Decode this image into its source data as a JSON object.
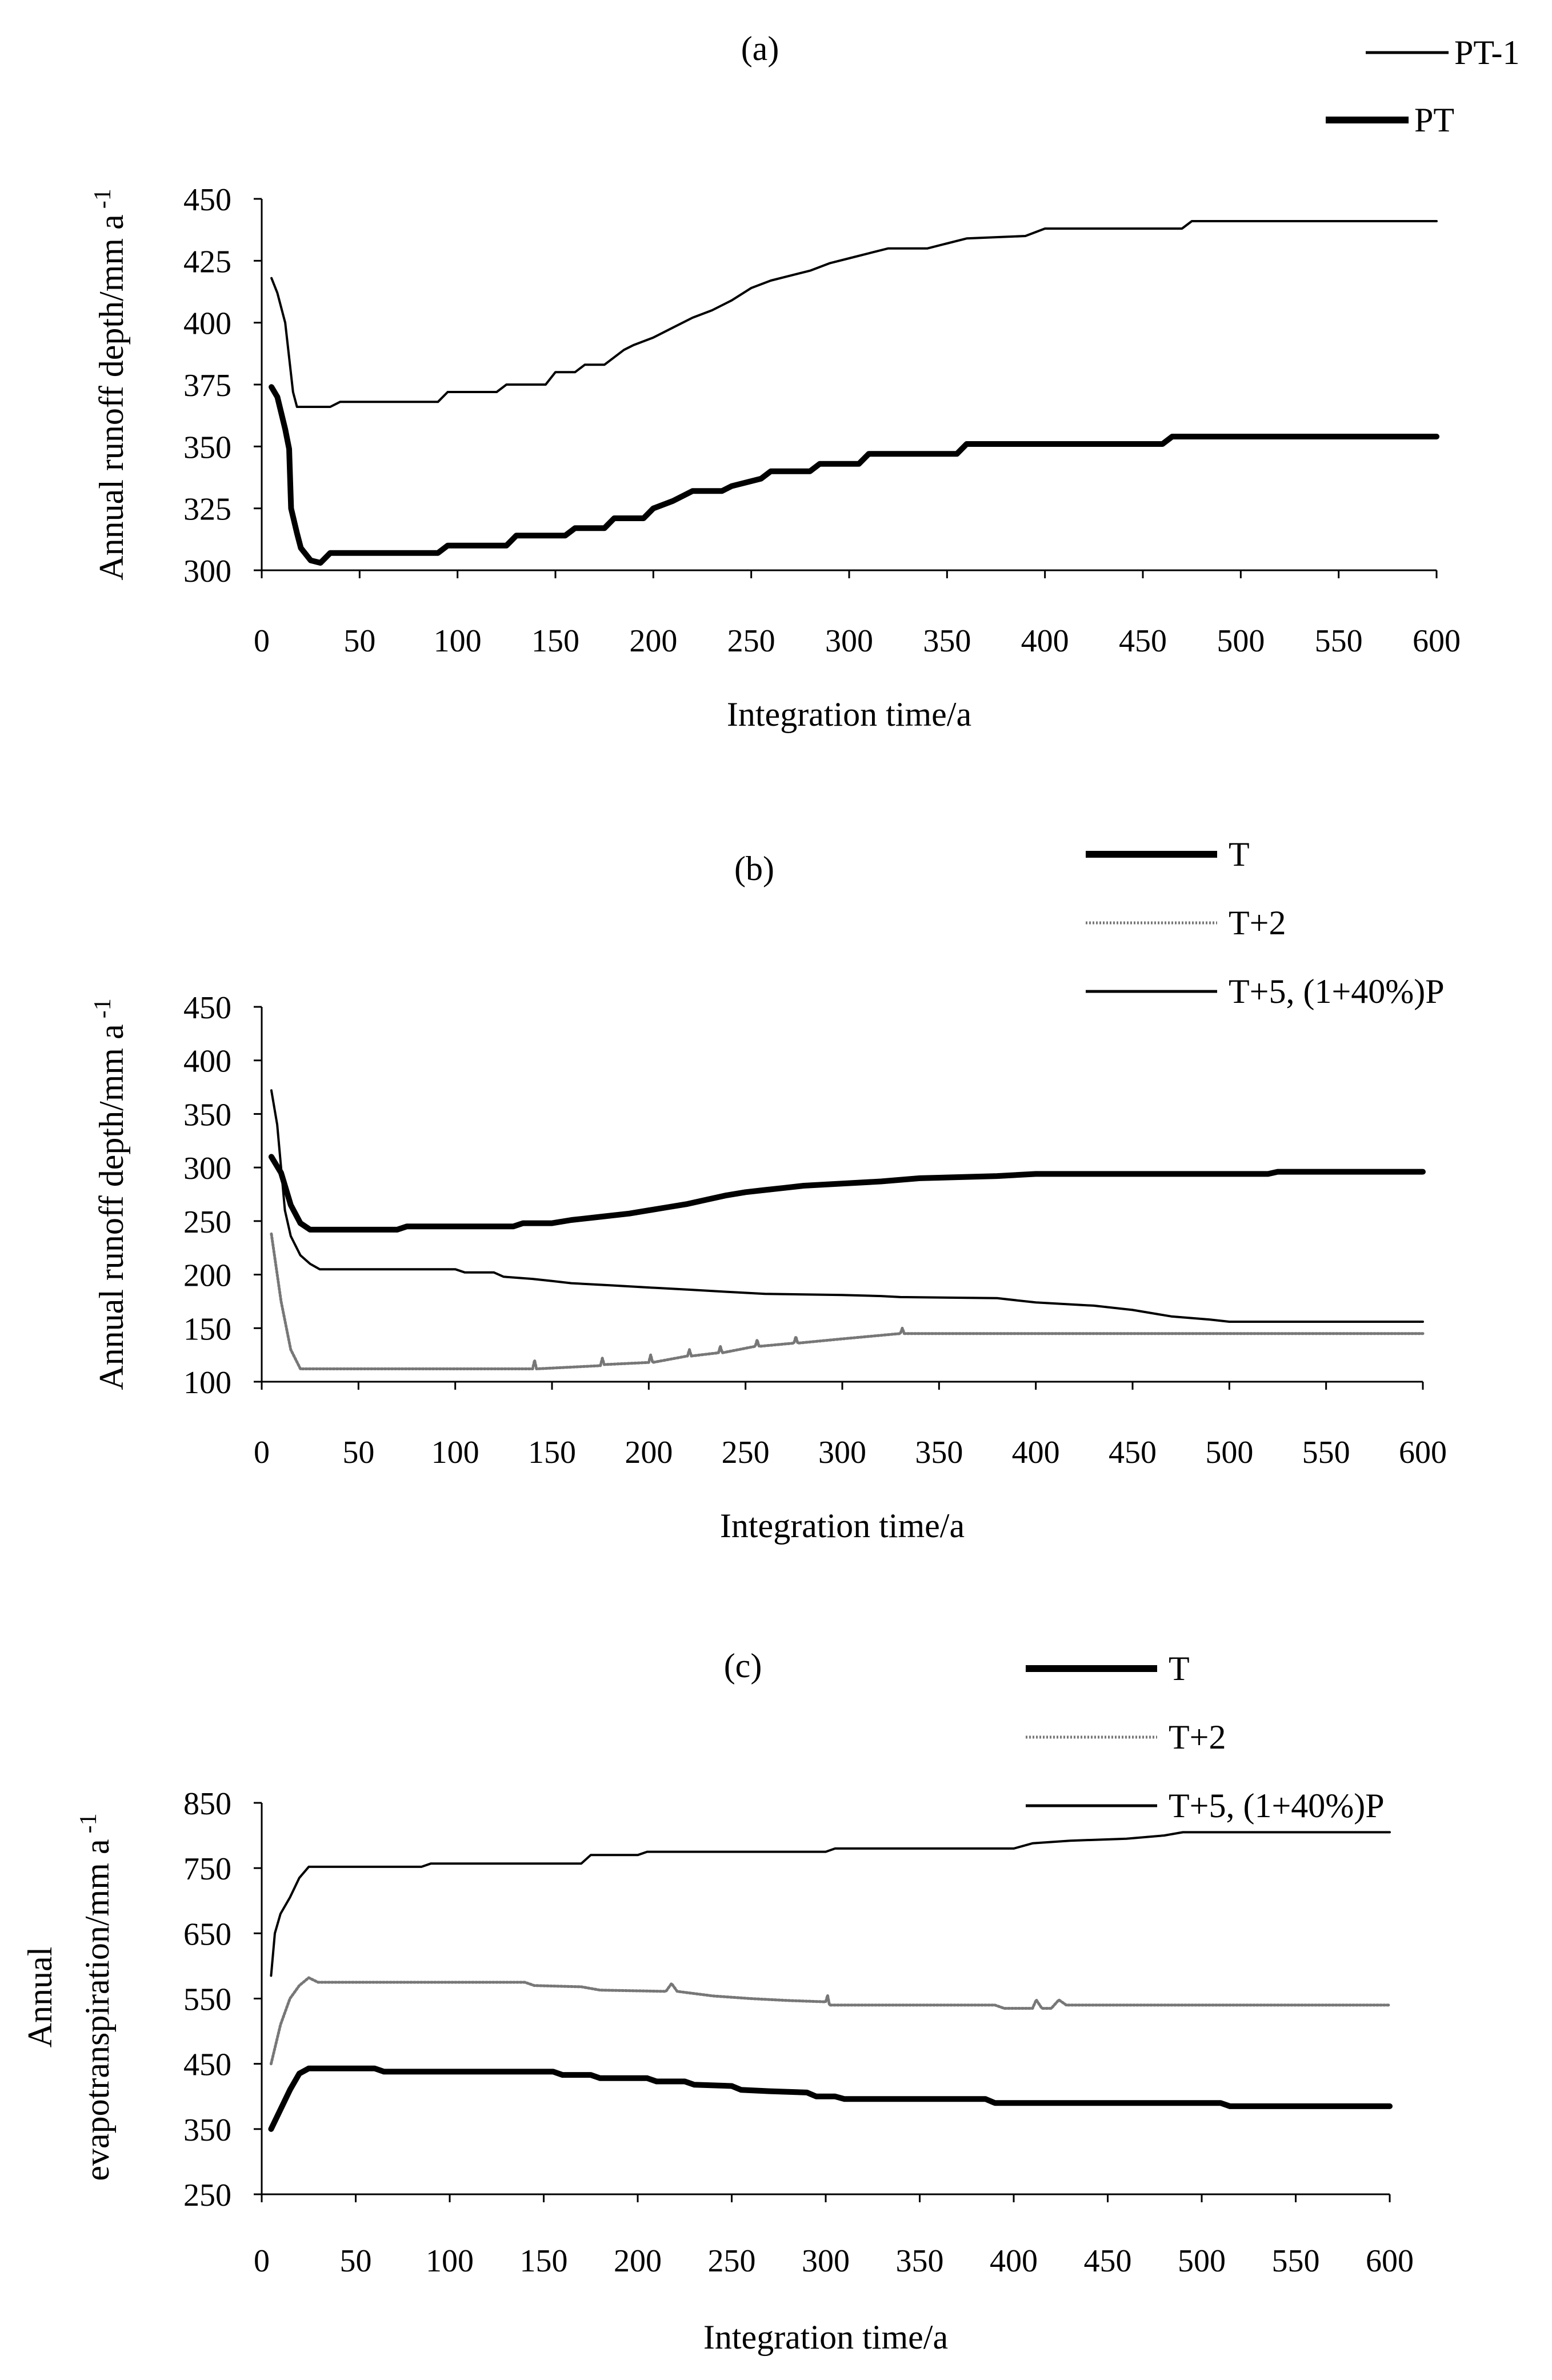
{
  "chart_data": [
    {
      "type": "line",
      "title": "(a)",
      "xlabel": "Integration time/a",
      "ylabel": "Annual runoff depth/mm a",
      "ylabel_sup": "-1",
      "xlim": [
        0,
        600
      ],
      "ylim": [
        300,
        450
      ],
      "xticks": [
        0,
        50,
        100,
        150,
        200,
        250,
        300,
        350,
        400,
        450,
        500,
        550,
        600
      ],
      "yticks": [
        300,
        325,
        350,
        375,
        400,
        425,
        450
      ],
      "legend_position": "top-right",
      "series": [
        {
          "name": "PT-1",
          "style": "thin",
          "points": [
            [
              5,
              418
            ],
            [
              8,
              412
            ],
            [
              12,
              400
            ],
            [
              16,
              372
            ],
            [
              18,
              366
            ],
            [
              35,
              366
            ],
            [
              40,
              368
            ],
            [
              90,
              368
            ],
            [
              95,
              372
            ],
            [
              120,
              372
            ],
            [
              125,
              375
            ],
            [
              145,
              375
            ],
            [
              150,
              380
            ],
            [
              160,
              380
            ],
            [
              165,
              383
            ],
            [
              175,
              383
            ],
            [
              180,
              386
            ],
            [
              185,
              389
            ],
            [
              190,
              391
            ],
            [
              200,
              394
            ],
            [
              210,
              398
            ],
            [
              220,
              402
            ],
            [
              230,
              405
            ],
            [
              240,
              409
            ],
            [
              250,
              414
            ],
            [
              260,
              417
            ],
            [
              270,
              419
            ],
            [
              280,
              421
            ],
            [
              290,
              424
            ],
            [
              300,
              426
            ],
            [
              310,
              428
            ],
            [
              320,
              430
            ],
            [
              340,
              430
            ],
            [
              350,
              432
            ],
            [
              360,
              434
            ],
            [
              390,
              435
            ],
            [
              400,
              438
            ],
            [
              470,
              438
            ],
            [
              475,
              441
            ],
            [
              600,
              441
            ]
          ]
        },
        {
          "name": "PT",
          "style": "thick",
          "points": [
            [
              5,
              374
            ],
            [
              8,
              370
            ],
            [
              12,
              357
            ],
            [
              14,
              349
            ],
            [
              15,
              325
            ],
            [
              18,
              315
            ],
            [
              20,
              309
            ],
            [
              25,
              304
            ],
            [
              30,
              303
            ],
            [
              35,
              307
            ],
            [
              90,
              307
            ],
            [
              95,
              310
            ],
            [
              125,
              310
            ],
            [
              130,
              314
            ],
            [
              155,
              314
            ],
            [
              160,
              317
            ],
            [
              175,
              317
            ],
            [
              180,
              321
            ],
            [
              195,
              321
            ],
            [
              200,
              325
            ],
            [
              210,
              328
            ],
            [
              220,
              332
            ],
            [
              235,
              332
            ],
            [
              240,
              334
            ],
            [
              255,
              337
            ],
            [
              260,
              340
            ],
            [
              280,
              340
            ],
            [
              285,
              343
            ],
            [
              305,
              343
            ],
            [
              310,
              347
            ],
            [
              355,
              347
            ],
            [
              360,
              351
            ],
            [
              460,
              351
            ],
            [
              465,
              354
            ],
            [
              600,
              354
            ]
          ]
        }
      ]
    },
    {
      "type": "line",
      "title": "(b)",
      "xlabel": "Integration time/a",
      "ylabel": "Annual runoff depth/mm a",
      "ylabel_sup": "-1",
      "xlim": [
        0,
        600
      ],
      "ylim": [
        100,
        450
      ],
      "xticks": [
        0,
        50,
        100,
        150,
        200,
        250,
        300,
        350,
        400,
        450,
        500,
        550,
        600
      ],
      "yticks": [
        100,
        150,
        200,
        250,
        300,
        350,
        400,
        450
      ],
      "legend_position": "top-right",
      "series": [
        {
          "name": "T",
          "style": "thick",
          "points": [
            [
              5,
              310
            ],
            [
              10,
              295
            ],
            [
              15,
              265
            ],
            [
              20,
              248
            ],
            [
              25,
              242
            ],
            [
              70,
              242
            ],
            [
              75,
              245
            ],
            [
              130,
              245
            ],
            [
              135,
              248
            ],
            [
              150,
              248
            ],
            [
              160,
              251
            ],
            [
              175,
              254
            ],
            [
              190,
              257
            ],
            [
              200,
              260
            ],
            [
              210,
              263
            ],
            [
              220,
              266
            ],
            [
              230,
              270
            ],
            [
              240,
              274
            ],
            [
              250,
              277
            ],
            [
              260,
              279
            ],
            [
              270,
              281
            ],
            [
              280,
              283
            ],
            [
              300,
              285
            ],
            [
              320,
              287
            ],
            [
              340,
              290
            ],
            [
              380,
              292
            ],
            [
              400,
              294
            ],
            [
              520,
              294
            ],
            [
              525,
              296
            ],
            [
              600,
              296
            ]
          ]
        },
        {
          "name": "T+2",
          "style": "dotted",
          "points": [
            [
              5,
              238
            ],
            [
              10,
              175
            ],
            [
              15,
              130
            ],
            [
              20,
              112
            ],
            [
              140,
              112
            ],
            [
              141,
              120
            ],
            [
              142,
              112
            ],
            [
              175,
              115
            ],
            [
              176,
              122
            ],
            [
              177,
              116
            ],
            [
              200,
              118
            ],
            [
              201,
              125
            ],
            [
              202,
              118
            ],
            [
              220,
              124
            ],
            [
              221,
              130
            ],
            [
              222,
              124
            ],
            [
              236,
              127
            ],
            [
              237,
              133
            ],
            [
              238,
              127
            ],
            [
              255,
              133
            ],
            [
              256,
              139
            ],
            [
              257,
              133
            ],
            [
              275,
              136
            ],
            [
              276,
              142
            ],
            [
              277,
              136
            ],
            [
              300,
              140
            ],
            [
              330,
              145
            ],
            [
              331,
              150
            ],
            [
              332,
              145
            ],
            [
              600,
              145
            ]
          ]
        },
        {
          "name": "T+5, (1+40%)P",
          "style": "thin",
          "points": [
            [
              5,
              372
            ],
            [
              8,
              340
            ],
            [
              12,
              260
            ],
            [
              15,
              236
            ],
            [
              20,
              218
            ],
            [
              25,
              210
            ],
            [
              30,
              205
            ],
            [
              100,
              205
            ],
            [
              105,
              202
            ],
            [
              120,
              202
            ],
            [
              125,
              198
            ],
            [
              140,
              196
            ],
            [
              150,
              194
            ],
            [
              160,
              192
            ],
            [
              180,
              190
            ],
            [
              200,
              188
            ],
            [
              220,
              186
            ],
            [
              240,
              184
            ],
            [
              260,
              182
            ],
            [
              300,
              181
            ],
            [
              320,
              180
            ],
            [
              330,
              179
            ],
            [
              380,
              178
            ],
            [
              400,
              174
            ],
            [
              430,
              171
            ],
            [
              450,
              167
            ],
            [
              470,
              161
            ],
            [
              490,
              158
            ],
            [
              500,
              156
            ],
            [
              600,
              156
            ]
          ]
        }
      ]
    },
    {
      "type": "line",
      "title": "(c)",
      "xlabel": "Integration time/a",
      "ylabel": "Annual\nevapotranspiration/mm a",
      "ylabel_sup": "-1",
      "xlim": [
        0,
        600
      ],
      "ylim": [
        250,
        850
      ],
      "xticks": [
        0,
        50,
        100,
        150,
        200,
        250,
        300,
        350,
        400,
        450,
        500,
        550,
        600
      ],
      "yticks": [
        250,
        350,
        450,
        550,
        650,
        750,
        850
      ],
      "legend_position": "top-right",
      "series": [
        {
          "name": "T",
          "style": "thick",
          "points": [
            [
              5,
              350
            ],
            [
              10,
              380
            ],
            [
              15,
              410
            ],
            [
              20,
              435
            ],
            [
              25,
              443
            ],
            [
              60,
              443
            ],
            [
              65,
              438
            ],
            [
              155,
              438
            ],
            [
              160,
              433
            ],
            [
              175,
              433
            ],
            [
              180,
              428
            ],
            [
              205,
              428
            ],
            [
              210,
              423
            ],
            [
              225,
              423
            ],
            [
              230,
              418
            ],
            [
              250,
              416
            ],
            [
              255,
              410
            ],
            [
              270,
              408
            ],
            [
              290,
              406
            ],
            [
              295,
              400
            ],
            [
              305,
              400
            ],
            [
              310,
              396
            ],
            [
              385,
              396
            ],
            [
              390,
              390
            ],
            [
              510,
              390
            ],
            [
              515,
              385
            ],
            [
              600,
              385
            ]
          ]
        },
        {
          "name": "T+2",
          "style": "dotted",
          "points": [
            [
              5,
              450
            ],
            [
              10,
              510
            ],
            [
              15,
              550
            ],
            [
              20,
              570
            ],
            [
              25,
              582
            ],
            [
              30,
              575
            ],
            [
              140,
              575
            ],
            [
              145,
              570
            ],
            [
              170,
              568
            ],
            [
              180,
              563
            ],
            [
              215,
              561
            ],
            [
              218,
              573
            ],
            [
              221,
              561
            ],
            [
              240,
              554
            ],
            [
              260,
              550
            ],
            [
              280,
              547
            ],
            [
              300,
              545
            ],
            [
              301,
              555
            ],
            [
              302,
              540
            ],
            [
              390,
              540
            ],
            [
              395,
              535
            ],
            [
              410,
              535
            ],
            [
              412,
              548
            ],
            [
              415,
              535
            ],
            [
              420,
              535
            ],
            [
              424,
              548
            ],
            [
              428,
              540
            ],
            [
              600,
              540
            ]
          ]
        },
        {
          "name": "T+5, (1+40%)P",
          "style": "thin",
          "points": [
            [
              5,
              585
            ],
            [
              7,
              650
            ],
            [
              10,
              680
            ],
            [
              15,
              705
            ],
            [
              20,
              735
            ],
            [
              25,
              752
            ],
            [
              85,
              752
            ],
            [
              90,
              757
            ],
            [
              170,
              757
            ],
            [
              175,
              770
            ],
            [
              200,
              770
            ],
            [
              205,
              775
            ],
            [
              300,
              775
            ],
            [
              305,
              780
            ],
            [
              400,
              780
            ],
            [
              410,
              788
            ],
            [
              430,
              792
            ],
            [
              460,
              795
            ],
            [
              480,
              800
            ],
            [
              490,
              805
            ],
            [
              600,
              805
            ]
          ]
        }
      ]
    }
  ]
}
